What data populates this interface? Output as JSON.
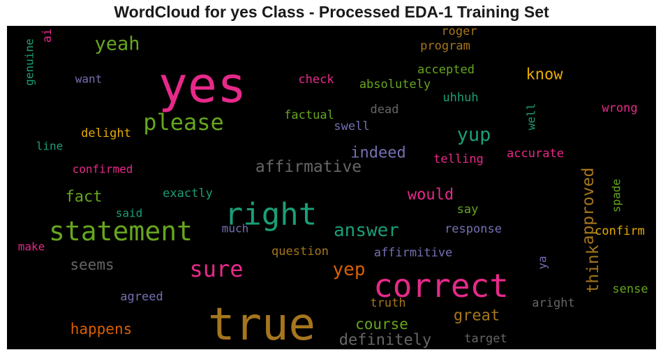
{
  "chart_data": {
    "type": "wordcloud",
    "title": "WordCloud for yes Class - Processed EDA-1 Training Set",
    "background": "#000000",
    "words": [
      {
        "text": "yes",
        "color": "#e7298a"
      },
      {
        "text": "true",
        "color": "#a6761d"
      },
      {
        "text": "right",
        "color": "#1b9e77"
      },
      {
        "text": "correct",
        "color": "#e7298a"
      },
      {
        "text": "statement",
        "color": "#66a61e"
      },
      {
        "text": "please",
        "color": "#66a61e"
      },
      {
        "text": "sure",
        "color": "#e7298a"
      },
      {
        "text": "yeah",
        "color": "#66a61e"
      },
      {
        "text": "yup",
        "color": "#1b9e77"
      },
      {
        "text": "answer",
        "color": "#1b9e77"
      },
      {
        "text": "yep",
        "color": "#d95f02"
      },
      {
        "text": "affirmative",
        "color": "#666666"
      },
      {
        "text": "approved",
        "color": "#a6761d"
      },
      {
        "text": "think",
        "color": "#a6761d"
      },
      {
        "text": "indeed",
        "color": "#7570b3"
      },
      {
        "text": "know",
        "color": "#e6ab02"
      },
      {
        "text": "would",
        "color": "#e7298a"
      },
      {
        "text": "fact",
        "color": "#66a61e"
      },
      {
        "text": "great",
        "color": "#a6761d"
      },
      {
        "text": "happens",
        "color": "#d95f02"
      },
      {
        "text": "course",
        "color": "#66a61e"
      },
      {
        "text": "definitely",
        "color": "#666666"
      },
      {
        "text": "seems",
        "color": "#666666"
      },
      {
        "text": "roger",
        "color": "#a6761d"
      },
      {
        "text": "program",
        "color": "#a6761d"
      },
      {
        "text": "ai",
        "color": "#e7298a"
      },
      {
        "text": "genuine",
        "color": "#1b9e77"
      },
      {
        "text": "want",
        "color": "#7570b3"
      },
      {
        "text": "check",
        "color": "#e7298a"
      },
      {
        "text": "accepted",
        "color": "#66a61e"
      },
      {
        "text": "absolutely",
        "color": "#66a61e"
      },
      {
        "text": "uhhuh",
        "color": "#1b9e77"
      },
      {
        "text": "dead",
        "color": "#666666"
      },
      {
        "text": "factual",
        "color": "#66a61e"
      },
      {
        "text": "swell",
        "color": "#7570b3"
      },
      {
        "text": "well",
        "color": "#1b9e77"
      },
      {
        "text": "wrong",
        "color": "#e7298a"
      },
      {
        "text": "delight",
        "color": "#e6ab02"
      },
      {
        "text": "line",
        "color": "#1b9e77"
      },
      {
        "text": "telling",
        "color": "#e7298a"
      },
      {
        "text": "accurate",
        "color": "#e7298a"
      },
      {
        "text": "confirmed",
        "color": "#e7298a"
      },
      {
        "text": "exactly",
        "color": "#1b9e77"
      },
      {
        "text": "said",
        "color": "#1b9e77"
      },
      {
        "text": "say",
        "color": "#66a61e"
      },
      {
        "text": "spade",
        "color": "#66a61e"
      },
      {
        "text": "much",
        "color": "#7570b3"
      },
      {
        "text": "response",
        "color": "#7570b3"
      },
      {
        "text": "confirm",
        "color": "#e6ab02"
      },
      {
        "text": "make",
        "color": "#e7298a"
      },
      {
        "text": "question",
        "color": "#a6761d"
      },
      {
        "text": "affirmitive",
        "color": "#7570b3"
      },
      {
        "text": "ya",
        "color": "#7570b3"
      },
      {
        "text": "agreed",
        "color": "#7570b3"
      },
      {
        "text": "truth",
        "color": "#a6761d"
      },
      {
        "text": "aright",
        "color": "#666666"
      },
      {
        "text": "sense",
        "color": "#66a61e"
      },
      {
        "text": "target",
        "color": "#666666"
      }
    ]
  }
}
